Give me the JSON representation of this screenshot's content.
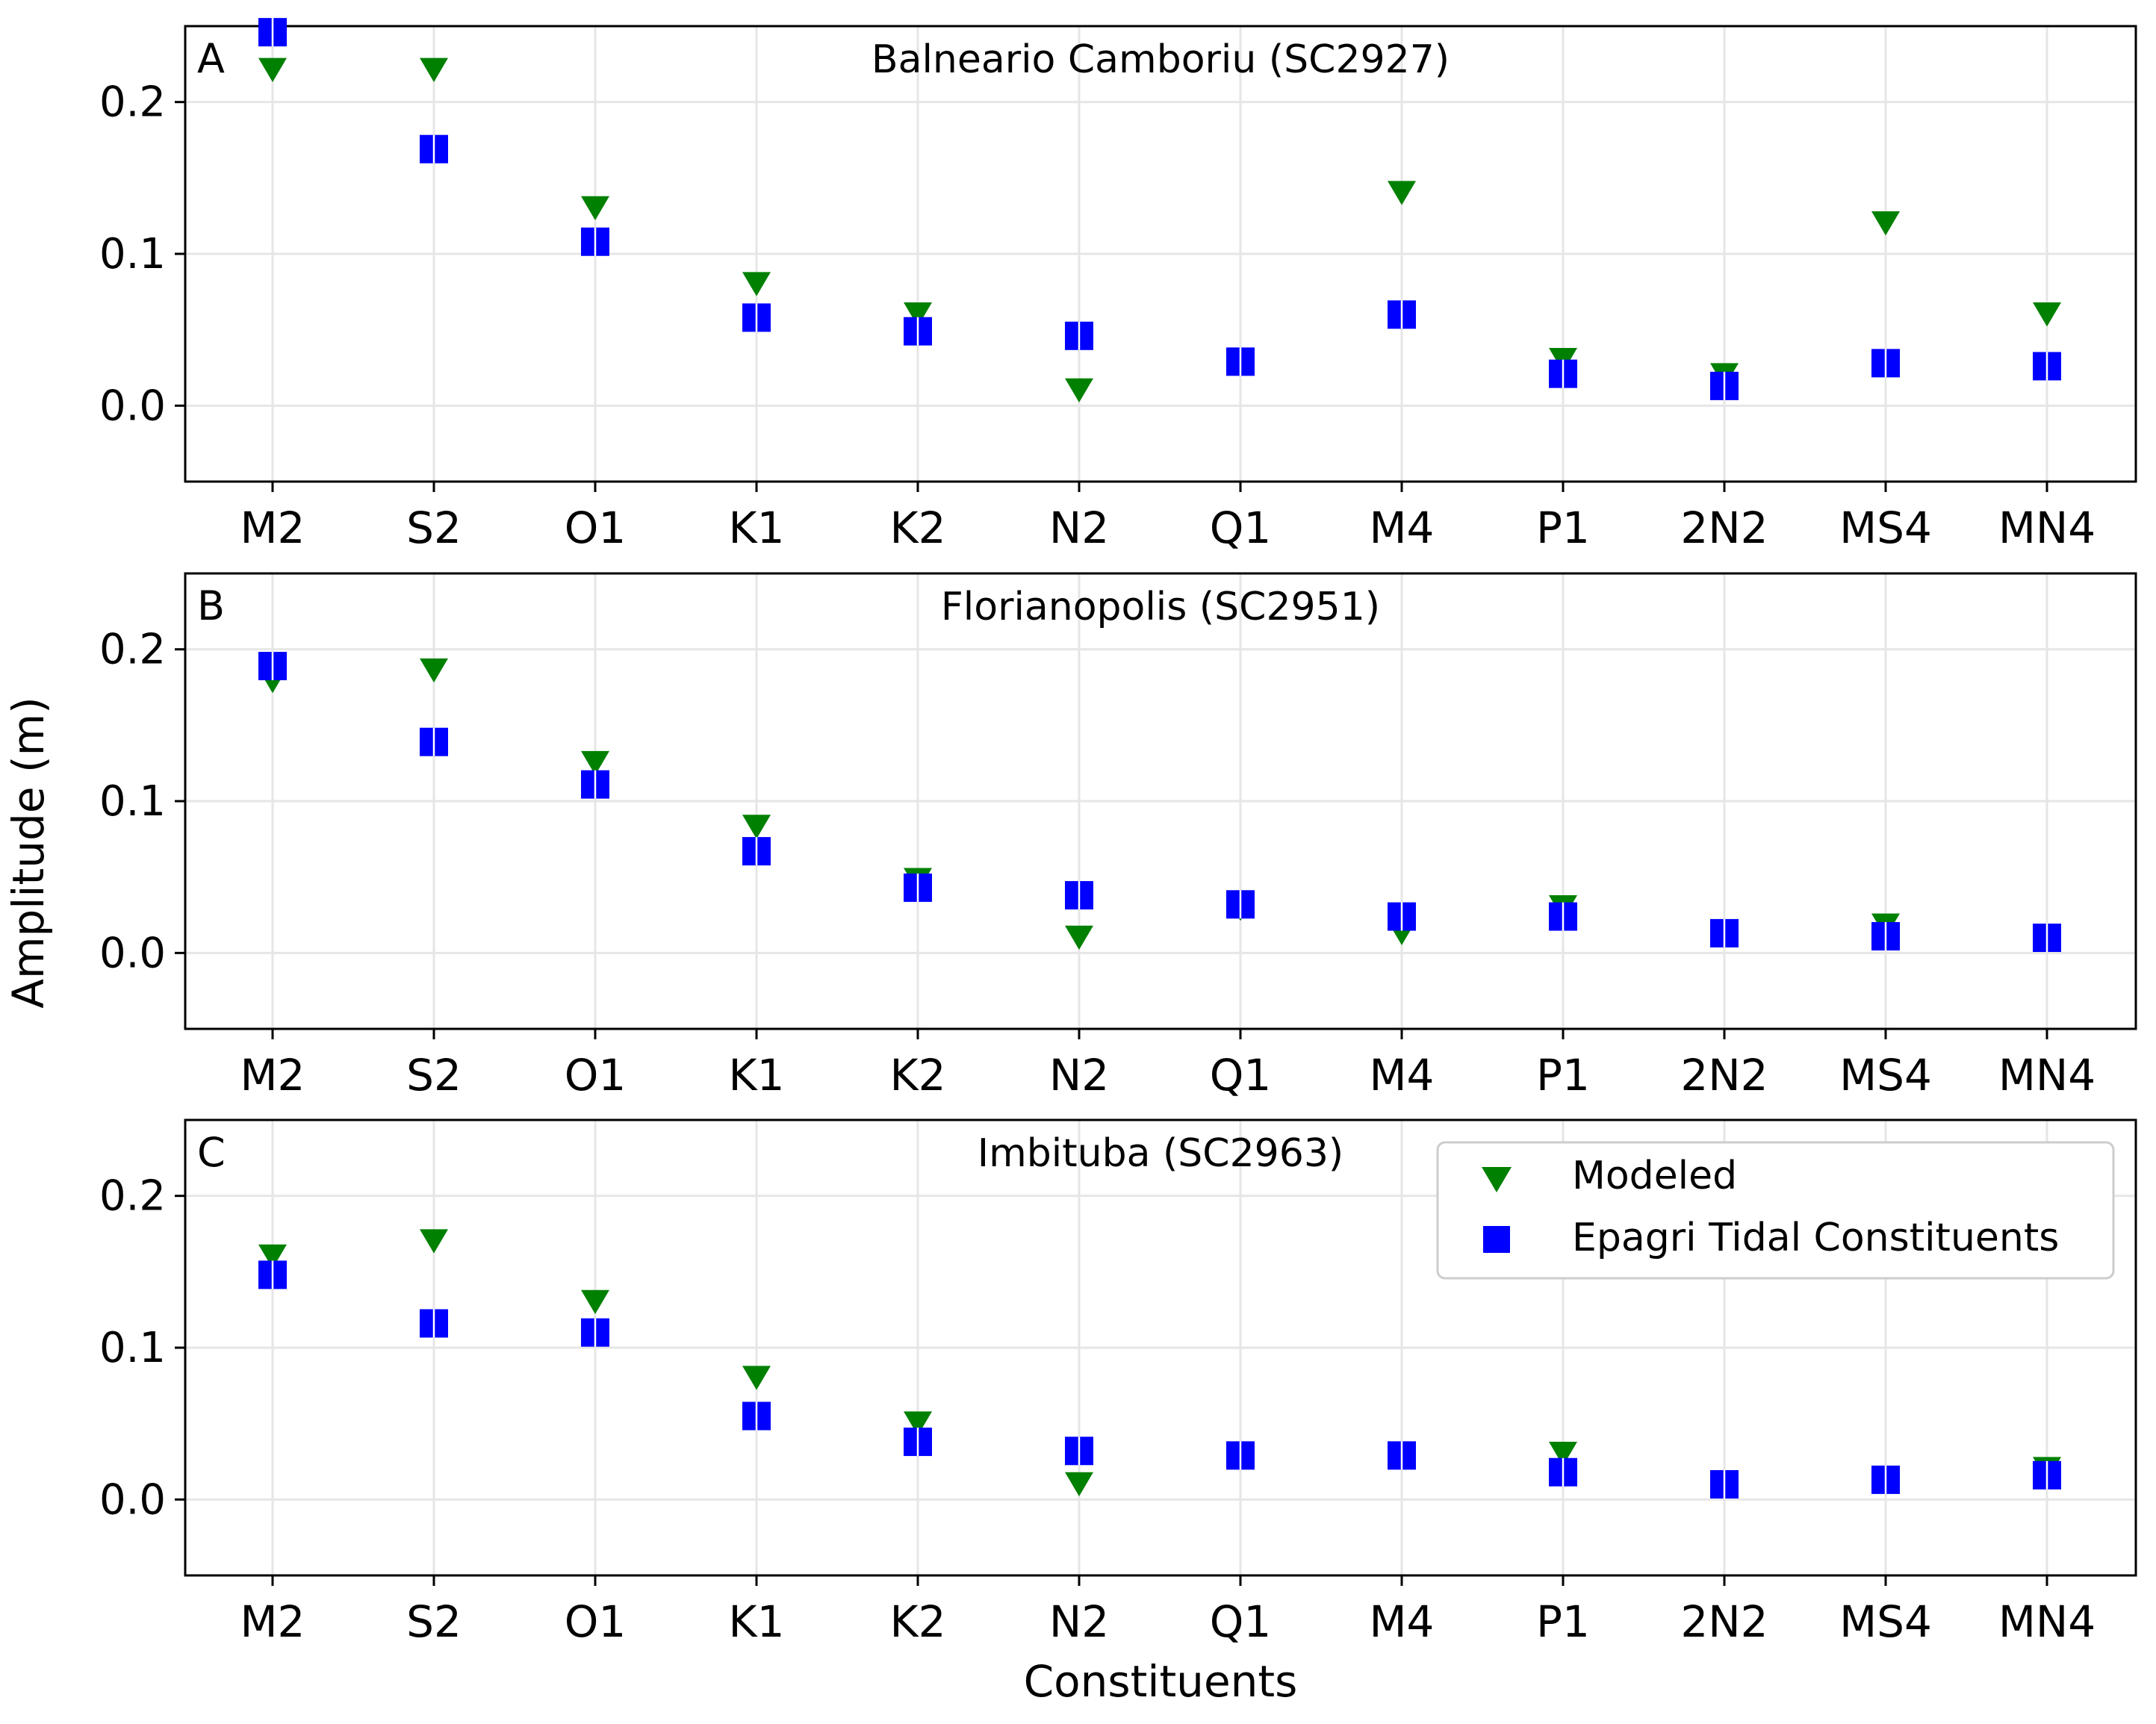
{
  "figure": {
    "ylabel": "Amplitude (m)",
    "xlabel": "Constituents"
  },
  "legend": {
    "placement": "top-right of panel C",
    "entries": [
      {
        "label": "Modeled",
        "marker": "triangle-down",
        "color": "#008000"
      },
      {
        "label": "Epagri Tidal Constituents",
        "marker": "square",
        "color": "#0000ff"
      }
    ]
  },
  "colors": {
    "modeled": "#008000",
    "observed": "#0000ff",
    "grid": "#e6e6e6",
    "axes": "#000000"
  },
  "chart_data": [
    {
      "type": "scatter",
      "panel_letter": "A",
      "title": "Balneario Camboriu (SC2927)",
      "categories": [
        "M2",
        "S2",
        "O1",
        "K1",
        "K2",
        "N2",
        "Q1",
        "M4",
        "P1",
        "2N2",
        "MS4",
        "MN4"
      ],
      "ylim": [
        -0.05,
        0.25
      ],
      "yticks": [
        0.0,
        0.1,
        0.2
      ],
      "ytick_labels": [
        "0.0",
        "0.1",
        "0.2"
      ],
      "grid": true,
      "series": [
        {
          "name": "Modeled",
          "values": [
            0.222,
            0.222,
            0.131,
            0.081,
            0.061,
            0.011,
            0.03,
            0.141,
            0.031,
            0.021,
            0.121,
            0.061
          ]
        },
        {
          "name": "Epagri Tidal Constituents",
          "values": [
            0.246,
            0.169,
            0.108,
            0.058,
            0.049,
            0.046,
            0.029,
            0.06,
            0.021,
            0.013,
            0.028,
            0.026
          ]
        }
      ]
    },
    {
      "type": "scatter",
      "panel_letter": "B",
      "title": "Florianopolis (SC2951)",
      "categories": [
        "M2",
        "S2",
        "O1",
        "K1",
        "K2",
        "N2",
        "Q1",
        "M4",
        "P1",
        "2N2",
        "MS4",
        "MN4"
      ],
      "ylim": [
        -0.05,
        0.25
      ],
      "yticks": [
        0.0,
        0.1,
        0.2
      ],
      "ytick_labels": [
        "0.0",
        "0.1",
        "0.2"
      ],
      "grid": true,
      "series": [
        {
          "name": "Modeled",
          "values": [
            0.18,
            0.187,
            0.126,
            0.084,
            0.049,
            0.011,
            0.03,
            0.014,
            0.031,
            0.014,
            0.019,
            0.011
          ]
        },
        {
          "name": "Epagri Tidal Constituents",
          "values": [
            0.189,
            0.139,
            0.111,
            0.067,
            0.043,
            0.038,
            0.032,
            0.024,
            0.024,
            0.013,
            0.011,
            0.01
          ]
        }
      ]
    },
    {
      "type": "scatter",
      "panel_letter": "C",
      "title": "Imbituba (SC2963)",
      "categories": [
        "M2",
        "S2",
        "O1",
        "K1",
        "K2",
        "N2",
        "Q1",
        "M4",
        "P1",
        "2N2",
        "MS4",
        "MN4"
      ],
      "ylim": [
        -0.05,
        0.25
      ],
      "yticks": [
        0.0,
        0.1,
        0.2
      ],
      "ytick_labels": [
        "0.0",
        "0.1",
        "0.2"
      ],
      "grid": true,
      "series": [
        {
          "name": "Modeled",
          "values": [
            0.161,
            0.171,
            0.131,
            0.081,
            0.051,
            0.011,
            0.03,
            0.03,
            0.031,
            0.01,
            0.014,
            0.021
          ]
        },
        {
          "name": "Epagri Tidal Constituents",
          "values": [
            0.148,
            0.116,
            0.11,
            0.055,
            0.038,
            0.032,
            0.029,
            0.029,
            0.018,
            0.01,
            0.013,
            0.016
          ]
        }
      ]
    }
  ]
}
